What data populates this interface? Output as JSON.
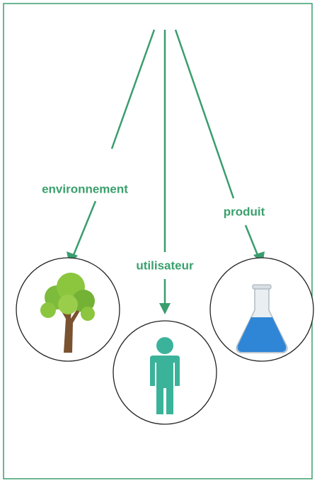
{
  "nodes": [
    {
      "label": "environnement"
    },
    {
      "label": "utilisateur"
    },
    {
      "label": "produit"
    }
  ]
}
